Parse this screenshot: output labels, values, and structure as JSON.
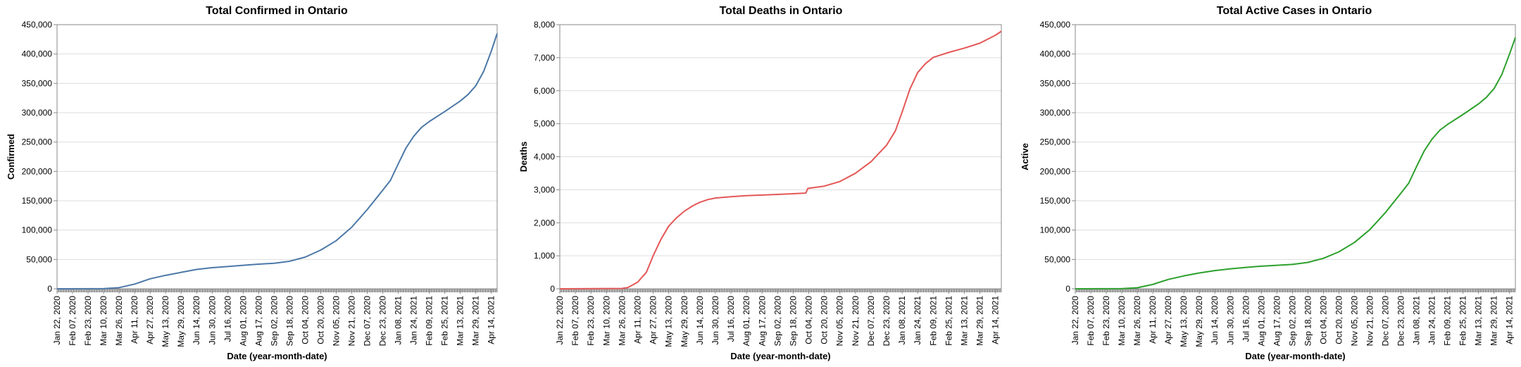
{
  "colors": {
    "confirmed": "#4c78a8",
    "deaths": "#e45756",
    "active": "#2ca02c"
  },
  "chart_data": [
    {
      "type": "line",
      "title": "Total Confirmed in Ontario",
      "xlabel": "Date (year-month-date)",
      "ylabel": "Confirmed",
      "color_key": "confirmed",
      "ylim": [
        0,
        450000
      ],
      "yticks": [
        0,
        50000,
        100000,
        150000,
        200000,
        250000,
        300000,
        350000,
        400000,
        450000
      ],
      "ytick_labels": [
        "0",
        "50,000",
        "100,000",
        "150,000",
        "200,000",
        "250,000",
        "300,000",
        "350,000",
        "400,000",
        "450,000"
      ],
      "x_start": "2020-01-22",
      "x_end": "2021-04-20",
      "x_tick_labels": [
        "Jan 22, 2020",
        "Feb 07, 2020",
        "Feb 23, 2020",
        "Mar 10, 2020",
        "Mar 26, 2020",
        "Apr 11, 2020",
        "Apr 27, 2020",
        "May 13, 2020",
        "May 29, 2020",
        "Jun 14, 2020",
        "Jun 30, 2020",
        "Jul 16, 2020",
        "Aug 01, 2020",
        "Aug 17, 2020",
        "Sep 02, 2020",
        "Sep 18, 2020",
        "Oct 04, 2020",
        "Oct 20, 2020",
        "Nov 05, 2020",
        "Nov 21, 2020",
        "Dec 07, 2020",
        "Dec 23, 2020",
        "Jan 08, 2021",
        "Jan 24, 2021",
        "Feb 09, 2021",
        "Feb 25, 2021",
        "Mar 13, 2021",
        "Mar 29, 2021",
        "Apr 14, 2021"
      ],
      "x": [
        "2020-01-22",
        "2020-03-10",
        "2020-03-26",
        "2020-04-11",
        "2020-04-27",
        "2020-05-13",
        "2020-05-29",
        "2020-06-14",
        "2020-06-30",
        "2020-07-16",
        "2020-08-01",
        "2020-08-17",
        "2020-09-02",
        "2020-09-18",
        "2020-10-04",
        "2020-10-20",
        "2020-11-05",
        "2020-11-21",
        "2020-12-07",
        "2020-12-23",
        "2020-12-31",
        "2021-01-08",
        "2021-01-16",
        "2021-01-24",
        "2021-02-01",
        "2021-02-09",
        "2021-02-25",
        "2021-03-13",
        "2021-03-21",
        "2021-03-29",
        "2021-04-06",
        "2021-04-14",
        "2021-04-20"
      ],
      "y": [
        0,
        300,
        2000,
        8000,
        17000,
        23000,
        28000,
        33000,
        36000,
        38000,
        40000,
        42000,
        43500,
        47000,
        54000,
        66000,
        82000,
        105000,
        135000,
        168000,
        185000,
        213000,
        240000,
        260000,
        275000,
        285000,
        302000,
        320000,
        331000,
        346000,
        370000,
        405000,
        435000
      ]
    },
    {
      "type": "line",
      "title": "Total Deaths in Ontario",
      "xlabel": "Date (year-month-date)",
      "ylabel": "Deaths",
      "color_key": "deaths",
      "ylim": [
        0,
        8000
      ],
      "yticks": [
        0,
        1000,
        2000,
        3000,
        4000,
        5000,
        6000,
        7000,
        8000
      ],
      "ytick_labels": [
        "0",
        "1,000",
        "2,000",
        "3,000",
        "4,000",
        "5,000",
        "6,000",
        "7,000",
        "8,000"
      ],
      "x_start": "2020-01-22",
      "x_end": "2021-04-20",
      "x_tick_labels": [
        "Jan 22, 2020",
        "Feb 07, 2020",
        "Feb 23, 2020",
        "Mar 10, 2020",
        "Mar 26, 2020",
        "Apr 11, 2020",
        "Apr 27, 2020",
        "May 13, 2020",
        "May 29, 2020",
        "Jun 14, 2020",
        "Jun 30, 2020",
        "Jul 16, 2020",
        "Aug 01, 2020",
        "Aug 17, 2020",
        "Sep 02, 2020",
        "Sep 18, 2020",
        "Oct 04, 2020",
        "Oct 20, 2020",
        "Nov 05, 2020",
        "Nov 21, 2020",
        "Dec 07, 2020",
        "Dec 23, 2020",
        "Jan 08, 2021",
        "Jan 24, 2021",
        "Feb 09, 2021",
        "Feb 25, 2021",
        "Mar 13, 2021",
        "Mar 29, 2021",
        "Apr 14, 2021"
      ],
      "x": [
        "2020-01-22",
        "2020-03-26",
        "2020-04-01",
        "2020-04-11",
        "2020-04-20",
        "2020-04-27",
        "2020-05-05",
        "2020-05-13",
        "2020-05-21",
        "2020-05-29",
        "2020-06-07",
        "2020-06-14",
        "2020-06-22",
        "2020-06-30",
        "2020-07-16",
        "2020-08-01",
        "2020-08-17",
        "2020-09-02",
        "2020-09-18",
        "2020-10-01",
        "2020-10-03",
        "2020-10-20",
        "2020-11-05",
        "2020-11-21",
        "2020-12-07",
        "2020-12-23",
        "2021-01-01",
        "2021-01-08",
        "2021-01-16",
        "2021-01-24",
        "2021-02-01",
        "2021-02-09",
        "2021-02-25",
        "2021-03-13",
        "2021-03-29",
        "2021-04-06",
        "2021-04-14",
        "2021-04-20"
      ],
      "y": [
        0,
        10,
        40,
        200,
        500,
        1000,
        1500,
        1900,
        2150,
        2350,
        2520,
        2620,
        2700,
        2750,
        2790,
        2820,
        2840,
        2860,
        2880,
        2900,
        3040,
        3110,
        3250,
        3500,
        3850,
        4350,
        4780,
        5350,
        6050,
        6550,
        6820,
        7010,
        7160,
        7290,
        7440,
        7560,
        7680,
        7800
      ]
    },
    {
      "type": "line",
      "title": "Total Active Cases in Ontario",
      "xlabel": "Date (year-month-date)",
      "ylabel": "Active",
      "color_key": "active",
      "ylim": [
        0,
        450000
      ],
      "yticks": [
        0,
        50000,
        100000,
        150000,
        200000,
        250000,
        300000,
        350000,
        400000,
        450000
      ],
      "ytick_labels": [
        "0",
        "50,000",
        "100,000",
        "150,000",
        "200,000",
        "250,000",
        "300,000",
        "350,000",
        "400,000",
        "450,000"
      ],
      "x_start": "2020-01-22",
      "x_end": "2021-04-20",
      "x_tick_labels": [
        "Jan 22, 2020",
        "Feb 07, 2020",
        "Feb 23, 2020",
        "Mar 10, 2020",
        "Mar 26, 2020",
        "Apr 11, 2020",
        "Apr 27, 2020",
        "May 13, 2020",
        "May 29, 2020",
        "Jun 14, 2020",
        "Jun 30, 2020",
        "Jul 16, 2020",
        "Aug 01, 2020",
        "Aug 17, 2020",
        "Sep 02, 2020",
        "Sep 18, 2020",
        "Oct 04, 2020",
        "Oct 20, 2020",
        "Nov 05, 2020",
        "Nov 21, 2020",
        "Dec 07, 2020",
        "Dec 23, 2020",
        "Jan 08, 2021",
        "Jan 24, 2021",
        "Feb 09, 2021",
        "Feb 25, 2021",
        "Mar 13, 2021",
        "Mar 29, 2021",
        "Apr 14, 2021"
      ],
      "x": [
        "2020-01-22",
        "2020-03-10",
        "2020-03-26",
        "2020-04-11",
        "2020-04-27",
        "2020-05-13",
        "2020-05-29",
        "2020-06-14",
        "2020-06-30",
        "2020-07-16",
        "2020-08-01",
        "2020-08-17",
        "2020-09-02",
        "2020-09-18",
        "2020-10-04",
        "2020-10-20",
        "2020-11-05",
        "2020-11-21",
        "2020-12-07",
        "2020-12-23",
        "2020-12-31",
        "2021-01-08",
        "2021-01-16",
        "2021-01-24",
        "2021-02-01",
        "2021-02-09",
        "2021-02-25",
        "2021-03-13",
        "2021-03-21",
        "2021-03-29",
        "2021-04-06",
        "2021-04-14",
        "2021-04-20"
      ],
      "y": [
        0,
        300,
        1800,
        7500,
        16000,
        22000,
        27000,
        31000,
        34000,
        36500,
        38500,
        40000,
        41500,
        45000,
        52000,
        63000,
        79000,
        101000,
        130000,
        163000,
        180000,
        208000,
        235000,
        255000,
        270000,
        280000,
        297000,
        315000,
        326000,
        341000,
        365000,
        400000,
        428000
      ]
    }
  ]
}
